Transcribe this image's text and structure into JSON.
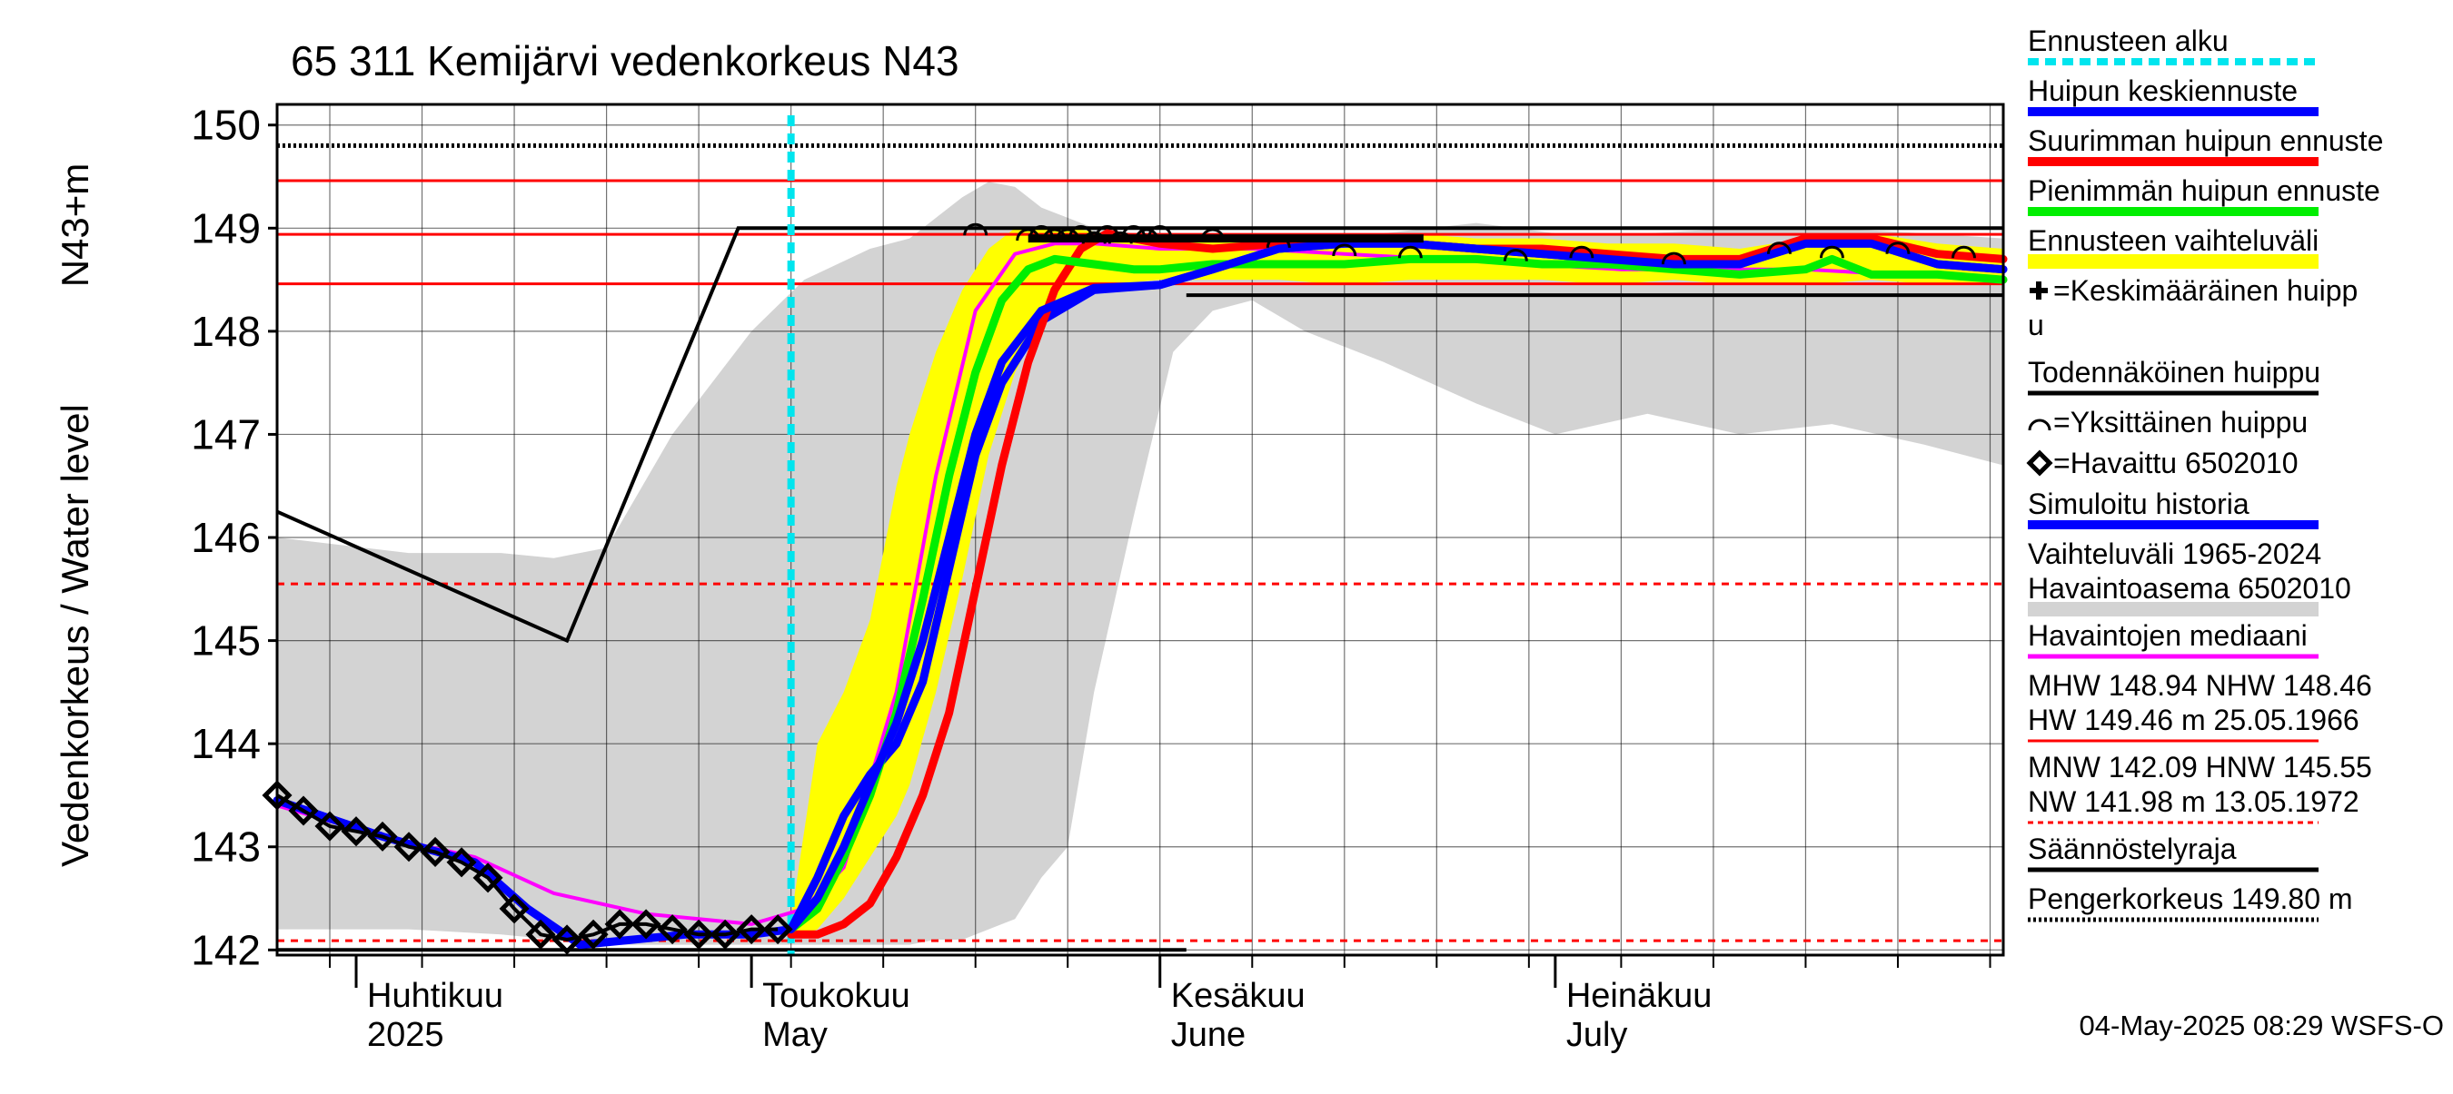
{
  "chart_data": {
    "type": "line",
    "title": "65 311 Kemijärvi vedenkorkeus N43",
    "ylabel": "Vedenkorkeus / Water level",
    "yunit": "N43+m",
    "xlim": [
      "2025-03-26",
      "2025-08-04"
    ],
    "ylim": [
      141.95,
      150.2
    ],
    "yticks": [
      142,
      143,
      144,
      145,
      146,
      147,
      148,
      149,
      150
    ],
    "month_labels": [
      {
        "fi": "Huhtikuu",
        "en": "2025",
        "date": "2025-04-01"
      },
      {
        "fi": "Toukokuu",
        "en": "May",
        "date": "2025-05-01"
      },
      {
        "fi": "Kesäkuu",
        "en": "June",
        "date": "2025-06-01"
      },
      {
        "fi": "Heinäkuu",
        "en": "July",
        "date": "2025-07-01"
      }
    ],
    "forecast_start": "2025-05-04",
    "reference_lines": [
      {
        "label": "Pengerkorkeus 149.80 m",
        "value": 149.8,
        "style": "dotted",
        "color": "#000000"
      },
      {
        "label": "HW",
        "value": 149.46,
        "style": "solid",
        "color": "#ff0000"
      },
      {
        "label": "MHW",
        "value": 148.94,
        "style": "solid",
        "color": "#ff0000"
      },
      {
        "label": "NHW",
        "value": 148.46,
        "style": "solid",
        "color": "#ff0000"
      },
      {
        "label": "HNW",
        "value": 145.55,
        "style": "dashed",
        "color": "#ff0000"
      },
      {
        "label": "MNW",
        "value": 142.09,
        "style": "dashed",
        "color": "#ff0000"
      }
    ],
    "regulation_limit": {
      "upper": [
        [
          "2025-03-26",
          146.25
        ],
        [
          "2025-04-17",
          145.0
        ],
        [
          "2025-04-30",
          149.0
        ],
        [
          "2025-08-04",
          149.0
        ]
      ],
      "lower": [
        [
          "2025-06-03",
          148.35
        ],
        [
          "2025-08-04",
          148.35
        ]
      ],
      "bottom": [
        [
          "2025-03-26",
          142.0
        ],
        [
          "2025-06-03",
          142.0
        ]
      ]
    },
    "history_range": {
      "x": [
        "2025-03-26",
        "2025-04-05",
        "2025-04-12",
        "2025-04-16",
        "2025-04-20",
        "2025-04-25",
        "2025-05-01",
        "2025-05-05",
        "2025-05-10",
        "2025-05-13",
        "2025-05-15",
        "2025-05-17",
        "2025-05-19",
        "2025-05-21",
        "2025-05-22",
        "2025-05-23",
        "2025-05-25",
        "2025-05-27",
        "2025-05-30",
        "2025-06-02",
        "2025-06-05",
        "2025-06-08",
        "2025-06-12",
        "2025-06-18",
        "2025-06-25",
        "2025-07-01",
        "2025-07-08",
        "2025-07-15",
        "2025-07-22",
        "2025-07-29",
        "2025-08-04"
      ],
      "upper": [
        146.0,
        145.85,
        145.85,
        145.8,
        145.9,
        147.0,
        148.0,
        148.5,
        148.8,
        148.9,
        149.1,
        149.3,
        149.45,
        149.4,
        149.3,
        149.2,
        149.1,
        149.0,
        148.95,
        148.95,
        148.95,
        148.95,
        148.95,
        148.95,
        149.05,
        148.95,
        148.95,
        149.0,
        149.0,
        148.95,
        148.9
      ],
      "lower": [
        142.2,
        142.2,
        142.15,
        142.1,
        142.05,
        142.05,
        142.05,
        142.05,
        142.05,
        142.05,
        142.1,
        142.1,
        142.2,
        142.3,
        142.5,
        142.7,
        143.0,
        144.5,
        146.2,
        147.8,
        148.2,
        148.3,
        148.0,
        147.7,
        147.3,
        147.0,
        147.2,
        147.0,
        147.1,
        146.9,
        146.7
      ]
    },
    "forecast_band": {
      "x": [
        "2025-05-04",
        "2025-05-06",
        "2025-05-08",
        "2025-05-10",
        "2025-05-12",
        "2025-05-13",
        "2025-05-15",
        "2025-05-17",
        "2025-05-19",
        "2025-05-21",
        "2025-05-23",
        "2025-05-25",
        "2025-05-28",
        "2025-06-01",
        "2025-06-05",
        "2025-06-10",
        "2025-06-15",
        "2025-06-20",
        "2025-06-25",
        "2025-06-30",
        "2025-07-05",
        "2025-07-10",
        "2025-07-15",
        "2025-07-20",
        "2025-07-25",
        "2025-07-30",
        "2025-08-04"
      ],
      "upper": [
        142.3,
        144.0,
        144.5,
        145.2,
        146.5,
        147.0,
        147.8,
        148.4,
        148.8,
        149.0,
        149.0,
        149.0,
        148.95,
        148.9,
        148.9,
        148.9,
        148.9,
        148.95,
        148.9,
        148.9,
        148.85,
        148.85,
        148.8,
        148.9,
        148.95,
        148.85,
        148.8
      ],
      "lower": [
        142.1,
        142.2,
        142.5,
        142.9,
        143.3,
        143.6,
        144.5,
        145.6,
        146.8,
        147.6,
        148.1,
        148.3,
        148.45,
        148.5,
        148.5,
        148.5,
        148.45,
        148.5,
        148.5,
        148.5,
        148.45,
        148.5,
        148.45,
        148.45,
        148.5,
        148.45,
        148.45
      ]
    },
    "series": [
      {
        "name": "Havaittu 6502010",
        "color": "#000000",
        "marker": "diamond",
        "x": [
          "2025-03-26",
          "2025-03-28",
          "2025-03-30",
          "2025-04-01",
          "2025-04-03",
          "2025-04-05",
          "2025-04-07",
          "2025-04-09",
          "2025-04-11",
          "2025-04-13",
          "2025-04-15",
          "2025-04-17",
          "2025-04-19",
          "2025-04-21",
          "2025-04-23",
          "2025-04-25",
          "2025-04-27",
          "2025-04-29",
          "2025-05-01",
          "2025-05-03"
        ],
        "y": [
          143.5,
          143.35,
          143.2,
          143.15,
          143.1,
          143.0,
          142.95,
          142.85,
          142.7,
          142.4,
          142.15,
          142.1,
          142.15,
          142.25,
          142.25,
          142.2,
          142.15,
          142.15,
          142.2,
          142.2
        ]
      },
      {
        "name": "Havaintojen mediaani",
        "color": "#ff00ff",
        "x": [
          "2025-03-26",
          "2025-04-03",
          "2025-04-10",
          "2025-04-16",
          "2025-04-23",
          "2025-05-01",
          "2025-05-05",
          "2025-05-08",
          "2025-05-12",
          "2025-05-15",
          "2025-05-18",
          "2025-05-21",
          "2025-05-24",
          "2025-05-27",
          "2025-06-01",
          "2025-06-08",
          "2025-06-15",
          "2025-06-22",
          "2025-06-29",
          "2025-07-06",
          "2025-07-13",
          "2025-07-20",
          "2025-07-27",
          "2025-08-04"
        ],
        "y": [
          143.4,
          143.1,
          142.9,
          142.55,
          142.35,
          142.25,
          142.4,
          142.8,
          144.5,
          146.6,
          148.2,
          148.75,
          148.85,
          148.85,
          148.8,
          148.8,
          148.75,
          148.7,
          148.65,
          148.6,
          148.6,
          148.6,
          148.55,
          148.5
        ]
      },
      {
        "name": "Simuloitu historia",
        "color": "#0000ff",
        "x": [
          "2025-03-26",
          "2025-04-03",
          "2025-04-10",
          "2025-04-14",
          "2025-04-18",
          "2025-04-22",
          "2025-04-26",
          "2025-05-01",
          "2025-05-04",
          "2025-05-06",
          "2025-05-08",
          "2025-05-10",
          "2025-05-12",
          "2025-05-14",
          "2025-05-16",
          "2025-05-18",
          "2025-05-20",
          "2025-05-23",
          "2025-05-27",
          "2025-06-01",
          "2025-06-05",
          "2025-06-10",
          "2025-06-15",
          "2025-06-20",
          "2025-06-25",
          "2025-06-30",
          "2025-07-05",
          "2025-07-10",
          "2025-07-15",
          "2025-07-20",
          "2025-07-25",
          "2025-07-30",
          "2025-08-04"
        ],
        "y": [
          143.45,
          143.1,
          142.85,
          142.4,
          142.05,
          142.1,
          142.15,
          142.15,
          142.2,
          142.7,
          143.3,
          143.7,
          144.0,
          144.6,
          145.7,
          146.8,
          147.5,
          148.1,
          148.4,
          148.45,
          148.6,
          148.8,
          148.85,
          148.85,
          148.8,
          148.75,
          148.7,
          148.65,
          148.65,
          148.85,
          148.85,
          148.65,
          148.6
        ]
      },
      {
        "name": "Huipun keskiennuste",
        "color": "#0000ff",
        "x": [
          "2025-05-04",
          "2025-05-06",
          "2025-05-08",
          "2025-05-10",
          "2025-05-12",
          "2025-05-14",
          "2025-05-16",
          "2025-05-18",
          "2025-05-20",
          "2025-05-23",
          "2025-05-27",
          "2025-06-01",
          "2025-06-05",
          "2025-06-10",
          "2025-06-15",
          "2025-06-20",
          "2025-06-25",
          "2025-06-30",
          "2025-07-05",
          "2025-07-10",
          "2025-07-15",
          "2025-07-20",
          "2025-07-25",
          "2025-07-30",
          "2025-08-04"
        ],
        "y": [
          142.2,
          142.5,
          143.0,
          143.6,
          144.2,
          145.0,
          146.0,
          147.0,
          147.7,
          148.2,
          148.42,
          148.45,
          148.6,
          148.8,
          148.85,
          148.85,
          148.8,
          148.75,
          148.7,
          148.65,
          148.65,
          148.85,
          148.85,
          148.65,
          148.6
        ]
      },
      {
        "name": "Suurimman huipun ennuste",
        "color": "#ff0000",
        "x": [
          "2025-05-04",
          "2025-05-06",
          "2025-05-08",
          "2025-05-10",
          "2025-05-12",
          "2025-05-14",
          "2025-05-16",
          "2025-05-18",
          "2025-05-20",
          "2025-05-22",
          "2025-05-24",
          "2025-05-26",
          "2025-05-28",
          "2025-06-01",
          "2025-06-05",
          "2025-06-10",
          "2025-06-15",
          "2025-06-20",
          "2025-06-25",
          "2025-06-30",
          "2025-07-05",
          "2025-07-10",
          "2025-07-15",
          "2025-07-20",
          "2025-07-25",
          "2025-07-30",
          "2025-08-04"
        ],
        "y": [
          142.15,
          142.15,
          142.25,
          142.45,
          142.9,
          143.5,
          144.3,
          145.5,
          146.7,
          147.7,
          148.4,
          148.8,
          148.95,
          148.85,
          148.8,
          148.85,
          148.9,
          148.85,
          148.8,
          148.8,
          148.75,
          148.7,
          148.7,
          148.9,
          148.9,
          148.75,
          148.7
        ]
      },
      {
        "name": "Pienimmän huipun ennuste",
        "color": "#00ee00",
        "x": [
          "2025-05-04",
          "2025-05-06",
          "2025-05-08",
          "2025-05-10",
          "2025-05-12",
          "2025-05-14",
          "2025-05-16",
          "2025-05-18",
          "2025-05-20",
          "2025-05-22",
          "2025-05-24",
          "2025-05-27",
          "2025-05-30",
          "2025-06-01",
          "2025-06-05",
          "2025-06-10",
          "2025-06-15",
          "2025-06-20",
          "2025-06-25",
          "2025-06-30",
          "2025-07-05",
          "2025-07-10",
          "2025-07-15",
          "2025-07-20",
          "2025-07-22",
          "2025-07-25",
          "2025-07-30",
          "2025-08-04"
        ],
        "y": [
          142.2,
          142.4,
          142.9,
          143.5,
          144.3,
          145.4,
          146.6,
          147.6,
          148.3,
          148.6,
          148.7,
          148.65,
          148.6,
          148.6,
          148.65,
          148.65,
          148.65,
          148.7,
          148.7,
          148.65,
          148.65,
          148.6,
          148.55,
          148.6,
          148.7,
          148.55,
          148.55,
          148.5
        ]
      }
    ],
    "peak_markers": {
      "individual": [
        [
          "2025-05-18",
          149.0
        ],
        [
          "2025-05-22",
          148.95
        ],
        [
          "2025-05-23",
          148.98
        ],
        [
          "2025-05-24",
          148.95
        ],
        [
          "2025-05-25",
          148.95
        ],
        [
          "2025-05-26",
          148.98
        ],
        [
          "2025-05-27",
          148.92
        ],
        [
          "2025-05-28",
          148.98
        ],
        [
          "2025-05-29",
          148.92
        ],
        [
          "2025-05-30",
          148.98
        ],
        [
          "2025-05-31",
          148.95
        ],
        [
          "2025-06-01",
          148.98
        ],
        [
          "2025-06-05",
          148.95
        ],
        [
          "2025-06-10",
          148.88
        ],
        [
          "2025-06-15",
          148.8
        ],
        [
          "2025-06-20",
          148.78
        ],
        [
          "2025-06-28",
          148.75
        ],
        [
          "2025-07-03",
          148.78
        ],
        [
          "2025-07-10",
          148.72
        ],
        [
          "2025-07-18",
          148.82
        ],
        [
          "2025-07-22",
          148.78
        ],
        [
          "2025-07-27",
          148.82
        ],
        [
          "2025-08-01",
          148.78
        ]
      ],
      "probable_peak_bar": {
        "from": "2025-05-22",
        "to": "2025-06-21",
        "value": 148.9
      }
    },
    "legend": [
      {
        "label": "Ennusteen alku",
        "color": "#00e5ee",
        "style": "dashed"
      },
      {
        "label": "Huipun keskiennuste",
        "color": "#0000ff",
        "style": "solid"
      },
      {
        "label": "Suurimman huipun ennuste",
        "color": "#ff0000",
        "style": "solid"
      },
      {
        "label": "Pienimmän huipun ennuste",
        "color": "#00ee00",
        "style": "solid"
      },
      {
        "label": "Ennusteen vaihteluväli",
        "color": "#ffff00",
        "style": "band"
      },
      {
        "label": "=Keskimääräinen huipp",
        "label2": "u",
        "color": "#000000",
        "style": "plus"
      },
      {
        "label": "Todennäköinen huippu",
        "color": "#000000",
        "style": "solid"
      },
      {
        "label": "=Yksittäinen huippu",
        "color": "#000000",
        "style": "arc"
      },
      {
        "label": "=Havaittu 6502010",
        "color": "#000000",
        "style": "diamond"
      },
      {
        "label": "Simuloitu historia",
        "color": "#0000ff",
        "style": "solid"
      },
      {
        "label": "Vaihteluväli 1965-2024",
        "label2": " Havaintoasema 6502010",
        "color": "#d3d3d3",
        "style": "band"
      },
      {
        "label": "Havaintojen mediaani",
        "color": "#ff00ff",
        "style": "solid"
      },
      {
        "label": "MHW 148.94 NHW 148.46",
        "label2": "HW 149.46 m 25.05.1966",
        "color": "#ff0000",
        "style": "solid"
      },
      {
        "label": "MNW 142.09 HNW 145.55",
        "label2": "NW 141.98 m 13.05.1972",
        "color": "#ff0000",
        "style": "dashed"
      },
      {
        "label": "Säännöstelyraja",
        "color": "#000000",
        "style": "solid"
      },
      {
        "label": "Pengerkorkeus 149.80 m",
        "color": "#000000",
        "style": "dotted"
      }
    ],
    "footer": "04-May-2025 08:29 WSFS-O"
  }
}
